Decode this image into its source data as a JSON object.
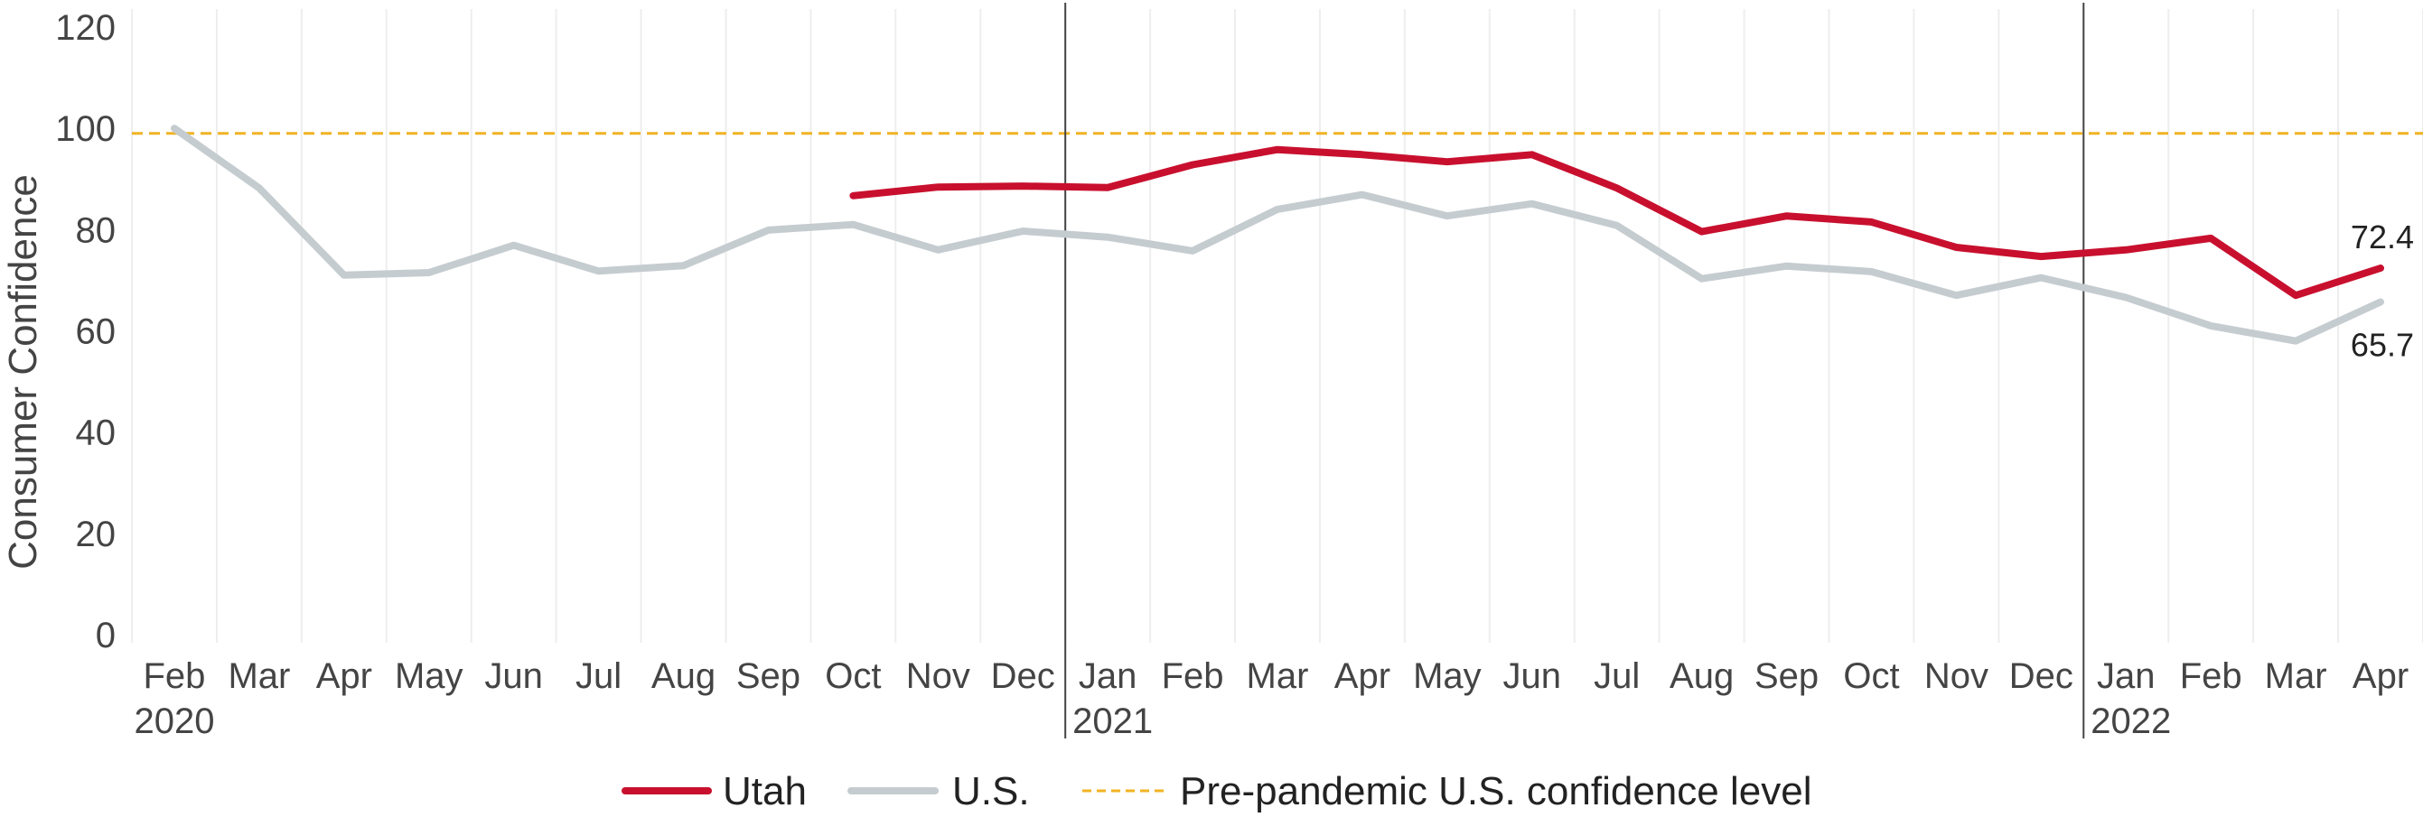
{
  "chart_data": {
    "type": "line",
    "ylabel": "Consumer Confidence",
    "ylim": [
      0,
      120
    ],
    "yticks": [
      0,
      20,
      40,
      60,
      80,
      100,
      120
    ],
    "categories": [
      "Feb",
      "Mar",
      "Apr",
      "May",
      "Jun",
      "Jul",
      "Aug",
      "Sep",
      "Oct",
      "Nov",
      "Dec",
      "Jan",
      "Feb",
      "Mar",
      "Apr",
      "May",
      "Jun",
      "Jul",
      "Aug",
      "Sep",
      "Oct",
      "Nov",
      "Dec",
      "Jan",
      "Feb",
      "Mar",
      "Apr"
    ],
    "x_dates": [
      "2020-02",
      "2020-03",
      "2020-04",
      "2020-05",
      "2020-06",
      "2020-07",
      "2020-08",
      "2020-09",
      "2020-10",
      "2020-11",
      "2020-12",
      "2021-01",
      "2021-02",
      "2021-03",
      "2021-04",
      "2021-05",
      "2021-06",
      "2021-07",
      "2021-08",
      "2021-09",
      "2021-10",
      "2021-11",
      "2021-12",
      "2022-01",
      "2022-02",
      "2022-03",
      "2022-04"
    ],
    "year_labels": [
      {
        "text": "2020",
        "at": "2020-02"
      },
      {
        "text": "2021",
        "at": "2021-01"
      },
      {
        "text": "2022",
        "at": "2022-01"
      }
    ],
    "year_dividers": [
      "2021-01",
      "2022-01"
    ],
    "series": [
      {
        "name": "Utah",
        "color": "#c8102e",
        "values": [
          null,
          null,
          null,
          null,
          null,
          null,
          null,
          null,
          86.7,
          88.4,
          88.6,
          88.3,
          92.8,
          95.8,
          94.8,
          93.4,
          94.8,
          88.2,
          79.6,
          82.7,
          81.5,
          76.5,
          74.7,
          76.0,
          78.3,
          67.0,
          72.4
        ],
        "end_label": "72.4"
      },
      {
        "name": "U.S.",
        "color": "#c5ccd0",
        "values": [
          100.0,
          88.2,
          71.0,
          71.5,
          76.9,
          71.8,
          72.9,
          79.9,
          81.0,
          76.0,
          79.7,
          78.5,
          75.8,
          84.0,
          86.9,
          82.7,
          85.1,
          80.8,
          70.3,
          72.8,
          71.7,
          67.0,
          70.5,
          66.6,
          61.0,
          58.0,
          65.7
        ],
        "end_label": "65.7"
      }
    ],
    "reference_line": {
      "name": "Pre-pandemic U.S. confidence level",
      "value": 99.0,
      "color": "#f0b323",
      "style": "dashed"
    },
    "legend": {
      "placement": "bottom-center",
      "items": [
        "Utah",
        "U.S.",
        "Pre-pandemic U.S. confidence level"
      ]
    },
    "grid": {
      "vertical": true,
      "horizontal": false
    }
  }
}
